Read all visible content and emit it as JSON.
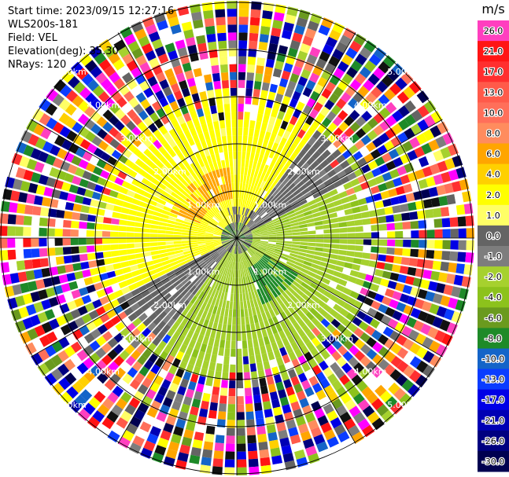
{
  "info": {
    "start_time": "Start time: 2023/09/15 12:27:16",
    "station": "WLS200s-181",
    "field": "Field: VEL",
    "elevation": "Elevation(deg): 35.30",
    "nrays": "NRays: 120"
  },
  "chart_data": {
    "type": "heatmap",
    "projection": "polar-ppi",
    "n_rays": 120,
    "range_ring_labels": [
      "1.00km",
      "2.00km",
      "3.00km",
      "4.00km",
      "5.00km"
    ],
    "colorbar": {
      "unit": "m/s",
      "ticks": [
        "26.0",
        "21.0",
        "17.0",
        "13.0",
        "10.0",
        "8.0",
        "6.0",
        "4.0",
        "2.0",
        "1.0",
        "0.0",
        "-1.0",
        "-2.0",
        "-4.0",
        "-6.0",
        "-8.0",
        "-10.0",
        "-13.0",
        "-17.0",
        "-21.0",
        "-26.0",
        "-30.0"
      ],
      "colors": [
        "#ff3fbf",
        "#ff1414",
        "#ff2f2f",
        "#ff5a4a",
        "#ff6f5a",
        "#ff8c5e",
        "#ffa500",
        "#ffd000",
        "#ffff00",
        "#ffff66",
        "#646464",
        "#7d7d7d",
        "#a6d12e",
        "#8cc21c",
        "#6a9a1e",
        "#1e8a28",
        "#1464c8",
        "#0a3cff",
        "#0000e6",
        "#0000b4",
        "#000080",
        "#000050"
      ]
    },
    "pattern": {
      "near": "mixed gray / dark green near origin",
      "north_west": "yellow (approaching ~1-2 m/s)",
      "north_west_patch": "orange (~4 m/s)",
      "south_east": "light green (receding ~-1 to -2 m/s)",
      "south_east_patch": "dark green (~-6 m/s)",
      "far": "noise of all colors beyond ~3 km"
    }
  }
}
